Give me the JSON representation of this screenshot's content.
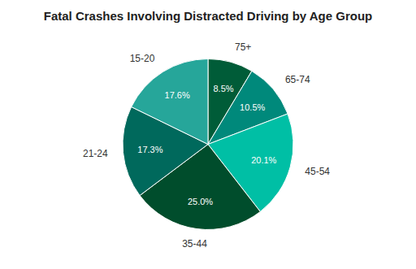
{
  "chart_data": {
    "type": "pie",
    "title": "Fatal Crashes Involving Distracted Driving by Age Group",
    "categories": [
      "75+",
      "65-74",
      "45-54",
      "35-44",
      "21-24",
      "15-20"
    ],
    "values": [
      8.5,
      10.5,
      20.1,
      25.0,
      17.3,
      17.6
    ],
    "value_labels": [
      "8.5%",
      "10.5%",
      "20.1%",
      "25.0%",
      "17.3%",
      "17.6%"
    ],
    "colors": [
      "#005C38",
      "#00897B",
      "#00BFA5",
      "#004D2C",
      "#00695C",
      "#26A69A"
    ],
    "data_labels": true
  }
}
